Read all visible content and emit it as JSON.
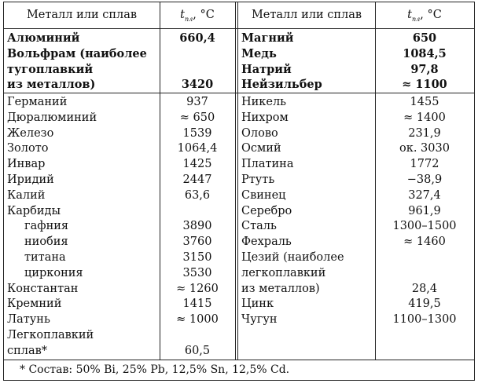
{
  "header": {
    "col_name": "Металл или сплав",
    "col_temp_t": "t",
    "col_temp_sub": "пл",
    "col_temp_unit": ", °C"
  },
  "left": {
    "group1": [
      {
        "name": "Алюминий",
        "value": "660,4"
      },
      {
        "name": "Вольфрам (наиболее",
        "value": ""
      },
      {
        "name": "тугоплавкий",
        "value": ""
      },
      {
        "name": "из металлов)",
        "value": "3420"
      }
    ],
    "group2": [
      {
        "name": "Германий",
        "value": "937"
      },
      {
        "name": "Дюралюминий",
        "value": "≈ 650"
      },
      {
        "name": "Железо",
        "value": "1539"
      },
      {
        "name": "Золото",
        "value": "1064,4"
      },
      {
        "name": "Инвар",
        "value": "1425"
      },
      {
        "name": "Иридий",
        "value": "2447"
      },
      {
        "name": "Калий",
        "value": "63,6"
      },
      {
        "name": "Карбиды",
        "value": ""
      },
      {
        "name": "гафния",
        "value": "3890",
        "indent": true
      },
      {
        "name": "ниобия",
        "value": "3760",
        "indent": true
      },
      {
        "name": "титана",
        "value": "3150",
        "indent": true
      },
      {
        "name": "циркония",
        "value": "3530",
        "indent": true
      },
      {
        "name": "Константан",
        "value": "≈ 1260"
      },
      {
        "name": "Кремний",
        "value": "1415"
      },
      {
        "name": "Латунь",
        "value": "≈ 1000"
      },
      {
        "name": "Легкоплавкий",
        "value": ""
      },
      {
        "name": "сплав*",
        "value": "60,5"
      }
    ]
  },
  "right": {
    "group1": [
      {
        "name": "Магний",
        "value": "650"
      },
      {
        "name": "Медь",
        "value": "1084,5"
      },
      {
        "name": "Натрий",
        "value": "97,8"
      },
      {
        "name": "Нейзильбер",
        "value": "≈ 1100"
      }
    ],
    "group2": [
      {
        "name": "Никель",
        "value": "1455"
      },
      {
        "name": "Нихром",
        "value": "≈ 1400"
      },
      {
        "name": "Олово",
        "value": "231,9"
      },
      {
        "name": "Осмий",
        "value": "ок. 3030"
      },
      {
        "name": "Платина",
        "value": "1772"
      },
      {
        "name": "Ртуть",
        "value": "−38,9"
      },
      {
        "name": "Свинец",
        "value": "327,4"
      },
      {
        "name": "Серебро",
        "value": "961,9"
      },
      {
        "name": "Сталь",
        "value": "1300–1500"
      },
      {
        "name": "Фехраль",
        "value": "≈ 1460"
      },
      {
        "name": "Цезий (наиболее",
        "value": ""
      },
      {
        "name": "легкоплавкий",
        "value": ""
      },
      {
        "name": "из металлов)",
        "value": "28,4"
      },
      {
        "name": "Цинк",
        "value": "419,5"
      },
      {
        "name": "Чугун",
        "value": "1100–1300"
      }
    ]
  },
  "footer": "* Состав: 50% Bi, 25% Pb, 12,5% Sn, 12,5% Cd."
}
